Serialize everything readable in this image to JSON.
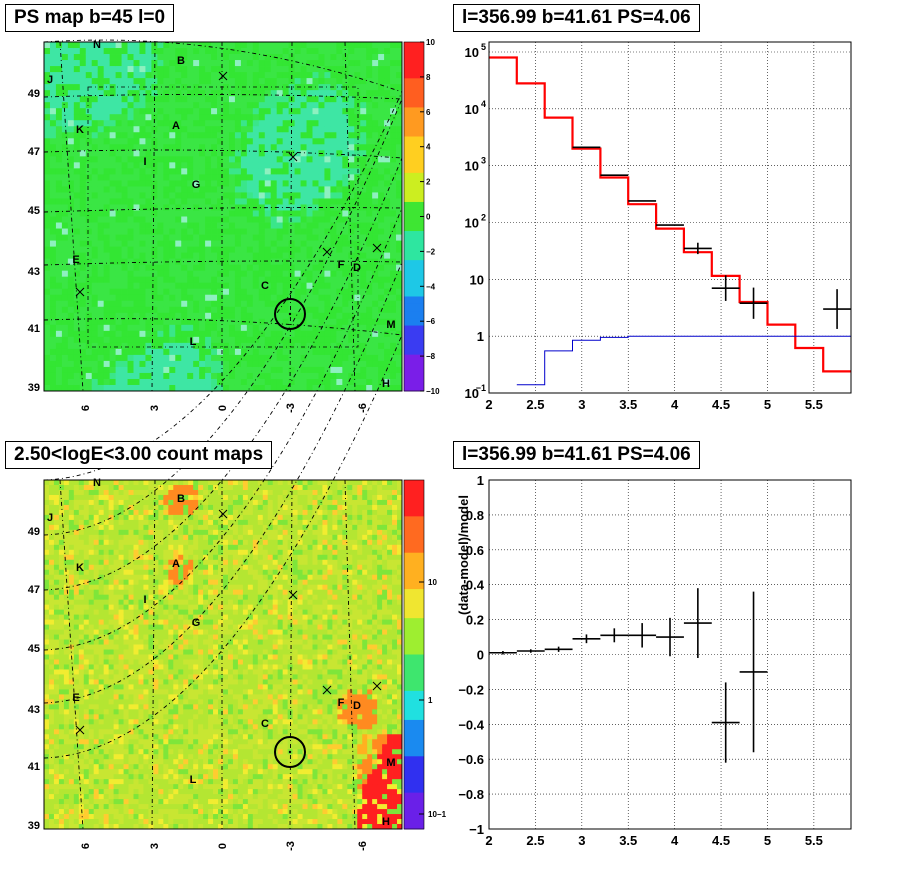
{
  "panels": {
    "tl": {
      "title": "PS map b=45 l=0"
    },
    "tr": {
      "title": "l=356.99 b=41.61 PS=4.06"
    },
    "bl": {
      "title": "2.50<logE<3.00 count maps"
    },
    "br": {
      "title": "l=356.99 b=41.61 PS=4.06"
    }
  },
  "chart_data": [
    {
      "type": "heatmap",
      "title": "PS map b=45 l=0",
      "x_ticks": [
        "6",
        "3",
        "0",
        "-3",
        "-6"
      ],
      "y_ticks": [
        "39",
        "41",
        "43",
        "45",
        "47",
        "49"
      ],
      "colorbar": {
        "scale": "linear",
        "range": [
          -10,
          10
        ],
        "ticks": [
          "10",
          "8",
          "6",
          "4",
          "2",
          "0",
          "−2",
          "−4",
          "−6",
          "−8",
          "−10"
        ]
      },
      "source_labels": [
        "N",
        "B",
        "J",
        "K",
        "A",
        "I",
        "G",
        "E",
        "F",
        "D",
        "C",
        "M",
        "L",
        "H"
      ],
      "colors": {
        "dominant": "#33e633",
        "cyan_patches": "#3ee6b5"
      }
    },
    {
      "type": "line",
      "title": "l=356.99 b=41.61 PS=4.06",
      "xlim": [
        2,
        5.9
      ],
      "ylog": true,
      "ylim": [
        0.1,
        150000
      ],
      "x_ticks": [
        "2",
        "2.5",
        "3",
        "3.5",
        "4",
        "4.5",
        "5",
        "5.5"
      ],
      "y_ticks": [
        "10−1",
        "1",
        "10",
        "102",
        "103",
        "104",
        "105"
      ],
      "series": [
        {
          "color": "#ff0000",
          "bins": [
            [
              2.0,
              2.3,
              80000
            ],
            [
              2.3,
              2.6,
              28000
            ],
            [
              2.6,
              2.9,
              7000
            ],
            [
              2.9,
              3.2,
              2000
            ],
            [
              3.2,
              3.5,
              620
            ],
            [
              3.5,
              3.8,
              210
            ],
            [
              3.8,
              4.1,
              78
            ],
            [
              4.1,
              4.4,
              30
            ],
            [
              4.4,
              4.7,
              11.5
            ],
            [
              4.7,
              5.0,
              4.0
            ],
            [
              5.0,
              5.3,
              1.6
            ],
            [
              5.3,
              5.6,
              0.62
            ],
            [
              5.6,
              5.9,
              0.24
            ]
          ]
        },
        {
          "color": "#0000cc",
          "bins": [
            [
              2.3,
              2.6,
              0.14
            ],
            [
              2.6,
              2.9,
              0.55
            ],
            [
              2.9,
              3.2,
              0.85
            ],
            [
              3.2,
              3.5,
              0.95
            ],
            [
              3.5,
              5.9,
              1.0
            ]
          ]
        },
        {
          "color": "#000000",
          "points": [
            [
              3.05,
              2100,
              0.15,
              0
            ],
            [
              3.35,
              680,
              0.15,
              0
            ],
            [
              3.65,
              240,
              0.15,
              0
            ],
            [
              3.95,
              90,
              0.15,
              0
            ],
            [
              4.25,
              35,
              0.15,
              0.2
            ],
            [
              4.55,
              7,
              0.15,
              0.45
            ],
            [
              4.85,
              3.8,
              0.15,
              0.55
            ],
            [
              5.75,
              3,
              0.15,
              0.7
            ]
          ]
        }
      ]
    },
    {
      "type": "heatmap",
      "title": "2.50<logE<3.00 count maps",
      "x_ticks": [
        "6",
        "3",
        "0",
        "-3",
        "-6"
      ],
      "y_ticks": [
        "39",
        "41",
        "43",
        "45",
        "47",
        "49"
      ],
      "colorbar": {
        "scale": "log",
        "ticks": [
          "10",
          "1",
          "10−1"
        ]
      },
      "source_labels": [
        "N",
        "B",
        "J",
        "K",
        "A",
        "I",
        "G",
        "E",
        "F",
        "D",
        "C",
        "M",
        "L",
        "H"
      ],
      "colors": {
        "dominant": "#c8e632",
        "hot": "#ff1a1a"
      }
    },
    {
      "type": "scatter",
      "title": "l=356.99 b=41.61 PS=4.06",
      "ylabel": "(data-model)/model",
      "xlim": [
        2,
        5.9
      ],
      "ylim": [
        -1,
        1
      ],
      "x_ticks": [
        "2",
        "2.5",
        "3",
        "3.5",
        "4",
        "4.5",
        "5",
        "5.5"
      ],
      "y_ticks": [
        "1",
        "0.8",
        "0.6",
        "0.4",
        "0.2",
        "0",
        "−0.2",
        "−0.4",
        "−0.6",
        "−0.8",
        "−1"
      ],
      "points": [
        [
          2.15,
          0.01,
          0.15,
          0.01
        ],
        [
          2.45,
          0.02,
          0.15,
          0.01
        ],
        [
          2.75,
          0.03,
          0.15,
          0.015
        ],
        [
          3.05,
          0.09,
          0.15,
          0.025
        ],
        [
          3.35,
          0.11,
          0.15,
          0.04
        ],
        [
          3.65,
          0.11,
          0.15,
          0.07
        ],
        [
          3.95,
          0.1,
          0.15,
          0.11
        ],
        [
          4.25,
          0.18,
          0.15,
          0.2
        ],
        [
          4.55,
          -0.39,
          0.15,
          0.23
        ],
        [
          4.85,
          -0.1,
          0.15,
          0.46
        ]
      ]
    }
  ]
}
